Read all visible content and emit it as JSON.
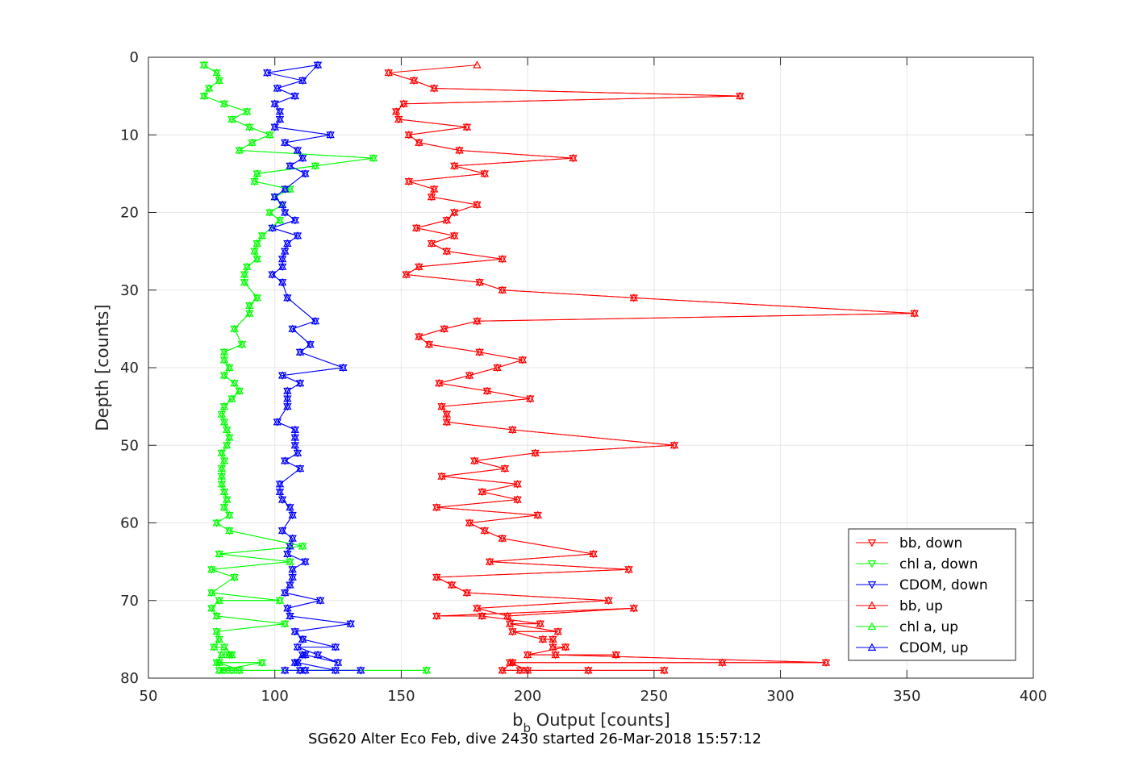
{
  "chart_data": {
    "type": "line",
    "title": "",
    "xlabel_main": "b",
    "xlabel_sub": "b",
    "xlabel_rest": " Output [counts]",
    "ylabel": "Depth [counts]",
    "caption": "SG620 Alter Eco Feb, dive 2430 started 26-Mar-2018 15:57:12",
    "xlim": [
      50,
      400
    ],
    "ylim": [
      0,
      80
    ],
    "y_reversed": true,
    "grid": true,
    "x_ticks": [
      "50",
      "100",
      "150",
      "200",
      "250",
      "300",
      "350",
      "400"
    ],
    "y_ticks": [
      "0",
      "10",
      "20",
      "30",
      "40",
      "50",
      "60",
      "70",
      "80"
    ],
    "legend_position": "bottom-right",
    "series": [
      {
        "name": "bb, down",
        "color": "#ff0000",
        "marker": "triangle-down",
        "x": [
          145,
          155,
          163,
          284,
          151,
          148,
          149,
          176,
          153,
          157,
          173,
          218,
          171,
          183,
          153,
          163,
          162,
          180,
          171,
          168,
          156,
          171,
          162,
          168,
          190,
          157,
          152,
          181,
          190,
          242,
          353,
          180,
          167,
          157,
          161,
          181,
          198,
          188,
          177,
          165,
          184,
          201,
          166,
          168,
          168,
          194,
          258,
          203,
          179,
          191,
          166,
          196,
          182,
          196,
          164,
          204,
          177,
          183,
          190,
          226,
          185,
          240,
          164,
          170,
          176,
          232,
          180,
          192,
          242,
          164,
          182,
          205,
          193,
          212,
          194,
          206,
          210,
          210,
          215,
          200,
          235,
          211,
          318,
          277,
          194,
          190,
          197,
          224,
          254,
          200,
          193
        ],
        "y": [
          2,
          3,
          4,
          5,
          6,
          7,
          8,
          9,
          10,
          11,
          12,
          13,
          14,
          15,
          16,
          17,
          18,
          19,
          20,
          21,
          22,
          23,
          24,
          25,
          26,
          27,
          28,
          29,
          30,
          31,
          33,
          34,
          35,
          36,
          37,
          38,
          39,
          40,
          41,
          42,
          43,
          44,
          45,
          46,
          47,
          48,
          50,
          51,
          52,
          53,
          54,
          55,
          56,
          57,
          58,
          59,
          60,
          61,
          62,
          64,
          65,
          66,
          67,
          68,
          69,
          70,
          71,
          72,
          71,
          72,
          72,
          73,
          73,
          74,
          74,
          75,
          75,
          76,
          76,
          77,
          77,
          77,
          78,
          78,
          78,
          79,
          79,
          79,
          79,
          79,
          78
        ]
      },
      {
        "name": "chl a, down",
        "color": "#00ff00",
        "marker": "triangle-down",
        "x": [
          72,
          77,
          78,
          74,
          72,
          80,
          89,
          83,
          90,
          98,
          91,
          86,
          139,
          116,
          93,
          92,
          106,
          100,
          103,
          98,
          102,
          95,
          93,
          92,
          93,
          89,
          88,
          88,
          93,
          90,
          90,
          84,
          87,
          80,
          80,
          82,
          80,
          84,
          86,
          83,
          80,
          79,
          80,
          81,
          82,
          81,
          79,
          80,
          79,
          79,
          79,
          80,
          81,
          80,
          82,
          77,
          82,
          111,
          78,
          106,
          75,
          84,
          75,
          102,
          78,
          75,
          77,
          104,
          77,
          78,
          76,
          80,
          83,
          82,
          79,
          77,
          95,
          78,
          160,
          80,
          83,
          86,
          78
        ],
        "y": [
          1,
          2,
          3,
          4,
          5,
          6,
          7,
          8,
          9,
          10,
          11,
          12,
          13,
          14,
          15,
          16,
          17,
          18,
          19,
          20,
          21,
          23,
          24,
          25,
          26,
          27,
          28,
          29,
          31,
          32,
          33,
          35,
          37,
          38,
          39,
          40,
          41,
          42,
          43,
          44,
          45,
          46,
          47,
          48,
          49,
          50,
          51,
          52,
          53,
          54,
          55,
          56,
          57,
          58,
          59,
          60,
          61,
          63,
          64,
          65,
          66,
          67,
          69,
          70,
          70,
          71,
          72,
          73,
          74,
          75,
          76,
          76,
          77,
          77,
          77,
          78,
          78,
          79,
          79,
          79,
          79,
          79,
          78
        ]
      },
      {
        "name": "CDOM, down",
        "color": "#0000ff",
        "marker": "triangle-down",
        "x": [
          97,
          117,
          111,
          101,
          108,
          100,
          102,
          102,
          100,
          122,
          104,
          109,
          111,
          106,
          112,
          104,
          100,
          103,
          104,
          108,
          99,
          109,
          105,
          104,
          103,
          103,
          99,
          103,
          105,
          116,
          107,
          114,
          110,
          127,
          103,
          110,
          105,
          105,
          105,
          101,
          108,
          108,
          108,
          109,
          104,
          110,
          102,
          102,
          103,
          106,
          107,
          103,
          107,
          106,
          105,
          112,
          107,
          107,
          106,
          104,
          118,
          105,
          106,
          130,
          108,
          111,
          111,
          124,
          109,
          117,
          125,
          112,
          111,
          108,
          109,
          124,
          104,
          112,
          110,
          134
        ],
        "y": [
          2,
          1,
          3,
          4,
          5,
          6,
          7,
          8,
          9,
          10,
          11,
          12,
          13,
          14,
          15,
          17,
          18,
          19,
          20,
          21,
          22,
          23,
          24,
          25,
          26,
          27,
          28,
          29,
          31,
          34,
          35,
          37,
          38,
          40,
          41,
          42,
          43,
          44,
          45,
          47,
          48,
          49,
          50,
          51,
          52,
          53,
          55,
          56,
          57,
          58,
          59,
          61,
          62,
          63,
          64,
          65,
          66,
          67,
          68,
          69,
          70,
          71,
          72,
          73,
          74,
          75,
          75,
          76,
          76,
          77,
          78,
          77,
          77,
          78,
          78,
          79,
          79,
          79,
          79,
          79
        ]
      },
      {
        "name": "bb, up",
        "color": "#ff0000",
        "marker": "triangle-up",
        "x": [
          180,
          145,
          155,
          163,
          284,
          151,
          148,
          149,
          176,
          153,
          157,
          173,
          218,
          171,
          183,
          153,
          163,
          162,
          180,
          171,
          168,
          156,
          171,
          162,
          168,
          190,
          157,
          152,
          181,
          190,
          242,
          353,
          180,
          167,
          157,
          161,
          181,
          198,
          188,
          177,
          165,
          184,
          201,
          166,
          168,
          168,
          194,
          258,
          203,
          179,
          191,
          166,
          196,
          182,
          196,
          164,
          204,
          177,
          183,
          190,
          226,
          185,
          240,
          164,
          170,
          176,
          232,
          180,
          192,
          242,
          164,
          182,
          205,
          193,
          212,
          194,
          206,
          210,
          210,
          215,
          200,
          235,
          211,
          318,
          277,
          194,
          190,
          197,
          224,
          254,
          200,
          193
        ],
        "y": [
          1,
          2,
          3,
          4,
          5,
          6,
          7,
          8,
          9,
          10,
          11,
          12,
          13,
          14,
          15,
          16,
          17,
          18,
          19,
          20,
          21,
          22,
          23,
          24,
          25,
          26,
          27,
          28,
          29,
          30,
          31,
          33,
          34,
          35,
          36,
          37,
          38,
          39,
          40,
          41,
          42,
          43,
          44,
          45,
          46,
          47,
          48,
          50,
          51,
          52,
          53,
          54,
          55,
          56,
          57,
          58,
          59,
          60,
          61,
          62,
          64,
          65,
          66,
          67,
          68,
          69,
          70,
          71,
          72,
          71,
          72,
          72,
          73,
          73,
          74,
          74,
          75,
          75,
          76,
          76,
          77,
          77,
          77,
          78,
          78,
          78,
          79,
          79,
          79,
          79,
          79,
          78
        ]
      },
      {
        "name": "chl a, up",
        "color": "#00ff00",
        "marker": "triangle-up",
        "x": [
          72,
          77,
          78,
          74,
          72,
          80,
          89,
          83,
          90,
          98,
          91,
          86,
          139,
          116,
          93,
          92,
          106,
          100,
          103,
          98,
          102,
          95,
          93,
          92,
          93,
          89,
          88,
          88,
          93,
          90,
          90,
          84,
          87,
          80,
          80,
          82,
          80,
          84,
          86,
          83,
          80,
          79,
          80,
          81,
          82,
          81,
          79,
          80,
          79,
          79,
          79,
          80,
          81,
          80,
          82,
          77,
          82,
          111,
          78,
          106,
          75,
          84,
          75,
          102,
          78,
          75,
          77,
          104,
          77,
          78,
          76,
          80,
          83,
          82,
          79,
          77,
          95,
          78,
          160,
          80,
          83,
          86,
          78
        ],
        "y": [
          1,
          2,
          3,
          4,
          5,
          6,
          7,
          8,
          9,
          10,
          11,
          12,
          13,
          14,
          15,
          16,
          17,
          18,
          19,
          20,
          21,
          23,
          24,
          25,
          26,
          27,
          28,
          29,
          31,
          32,
          33,
          35,
          37,
          38,
          39,
          40,
          41,
          42,
          43,
          44,
          45,
          46,
          47,
          48,
          49,
          50,
          51,
          52,
          53,
          54,
          55,
          56,
          57,
          58,
          59,
          60,
          61,
          63,
          64,
          65,
          66,
          67,
          69,
          70,
          70,
          71,
          72,
          73,
          74,
          75,
          76,
          76,
          77,
          77,
          77,
          78,
          78,
          79,
          79,
          79,
          79,
          79,
          78
        ]
      },
      {
        "name": "CDOM, up",
        "color": "#0000ff",
        "marker": "triangle-up",
        "x": [
          117,
          97,
          111,
          101,
          108,
          100,
          102,
          102,
          100,
          122,
          104,
          109,
          111,
          106,
          112,
          104,
          100,
          103,
          104,
          108,
          99,
          109,
          105,
          104,
          103,
          103,
          99,
          103,
          105,
          116,
          107,
          114,
          110,
          127,
          103,
          110,
          105,
          105,
          105,
          101,
          108,
          108,
          108,
          109,
          104,
          110,
          102,
          102,
          103,
          106,
          107,
          103,
          107,
          106,
          105,
          112,
          107,
          107,
          106,
          104,
          118,
          105,
          106,
          130,
          108,
          111,
          111,
          124,
          109,
          117,
          125,
          112,
          111,
          108,
          109,
          124,
          104,
          112,
          110,
          134
        ],
        "y": [
          1,
          2,
          3,
          4,
          5,
          6,
          7,
          8,
          9,
          10,
          11,
          12,
          13,
          14,
          15,
          17,
          18,
          19,
          20,
          21,
          22,
          23,
          24,
          25,
          26,
          27,
          28,
          29,
          31,
          34,
          35,
          37,
          38,
          40,
          41,
          42,
          43,
          44,
          45,
          47,
          48,
          49,
          50,
          51,
          52,
          53,
          55,
          56,
          57,
          58,
          59,
          61,
          62,
          63,
          64,
          65,
          66,
          67,
          68,
          69,
          70,
          71,
          72,
          73,
          74,
          75,
          75,
          76,
          76,
          77,
          78,
          77,
          77,
          78,
          78,
          79,
          79,
          79,
          79,
          79
        ]
      }
    ]
  }
}
